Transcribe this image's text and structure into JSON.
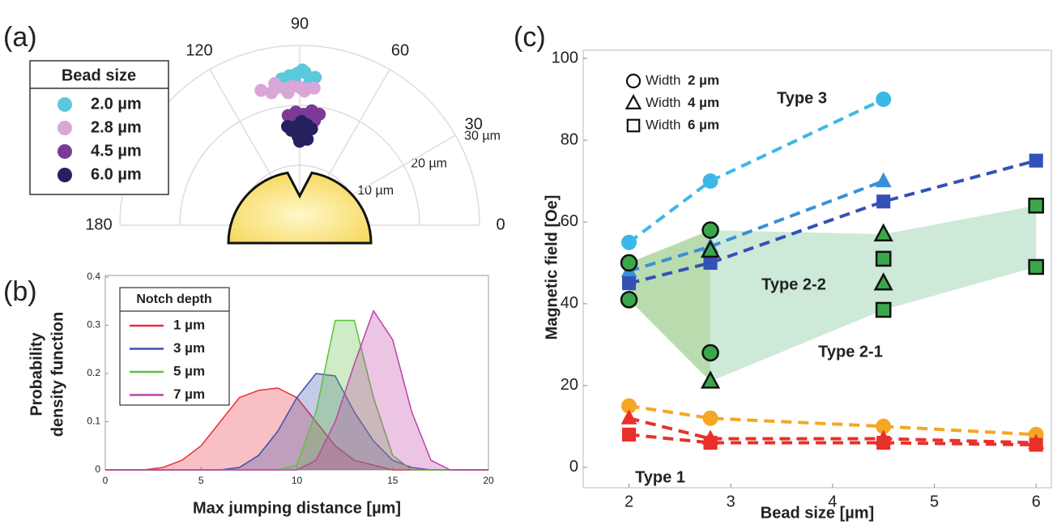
{
  "chart_data": [
    {
      "type": "polar-scatter",
      "label": "(a)",
      "legend_title": "Bead size",
      "thetalim": [
        0,
        180
      ],
      "rlim": [
        0,
        30
      ],
      "thetaticks": [
        0,
        30,
        60,
        90,
        120,
        180
      ],
      "rticks": [
        {
          "value": 10,
          "label": "10 µm"
        },
        {
          "value": 20,
          "label": "20 µm"
        },
        {
          "value": 30,
          "label": "30 µm"
        }
      ],
      "series": [
        {
          "name": "2.0 µm",
          "color": "#5cc8dc",
          "theta": [
            84,
            88,
            91,
            94,
            97,
            86,
            92,
            89
          ],
          "r": [
            24.8,
            25.5,
            25.3,
            25.0,
            24.6,
            23.9,
            24.2,
            25.9
          ]
        },
        {
          "name": "2.8 µm",
          "color": "#d9a6d8",
          "theta": [
            87,
            90,
            93,
            96,
            99,
            102,
            106,
            95,
            84,
            88,
            100
          ],
          "r": [
            22.8,
            23,
            23.2,
            22.9,
            23.3,
            22.6,
            23.4,
            22.2,
            23.0,
            22.4,
            24.0
          ]
        },
        {
          "name": "4.5 µm",
          "color": "#7b3a98",
          "theta": [
            80,
            84,
            88,
            92,
            96,
            86,
            90,
            82,
            94
          ],
          "r": [
            18.8,
            19.2,
            18.5,
            18.9,
            18.4,
            17.5,
            17.8,
            17.6,
            17.2
          ]
        },
        {
          "name": "6.0 µm",
          "color": "#25215e",
          "theta": [
            83,
            86,
            89,
            92,
            95,
            88,
            91,
            85,
            97,
            90
          ],
          "r": [
            16.2,
            16.8,
            17.3,
            16.5,
            15.9,
            15.2,
            14.8,
            14.4,
            16.6,
            14.0
          ]
        }
      ]
    },
    {
      "type": "area",
      "label": "(b)",
      "legend_title": "Notch depth",
      "xlabel": "Max jumping distance [µm]",
      "ylabel": [
        "Probability",
        "density function"
      ],
      "x": [
        0,
        1,
        2,
        3,
        4,
        5,
        6,
        7,
        8,
        9,
        10,
        11,
        12,
        13,
        14,
        15,
        16,
        17,
        18,
        19,
        20
      ],
      "xlim": [
        0,
        20
      ],
      "ylim": [
        0,
        0.4
      ],
      "xticks": [
        0,
        5,
        10,
        15,
        20
      ],
      "yticks": [
        0,
        0.1,
        0.2,
        0.3,
        0.4
      ],
      "series": [
        {
          "name": "1 µm",
          "color": "#e8303a",
          "values": [
            0,
            0,
            0,
            0.005,
            0.02,
            0.05,
            0.1,
            0.15,
            0.165,
            0.17,
            0.15,
            0.1,
            0.05,
            0.02,
            0.01,
            0,
            0,
            0,
            0,
            0,
            0
          ]
        },
        {
          "name": "3 µm",
          "color": "#3f4fb0",
          "values": [
            0,
            0,
            0,
            0,
            0,
            0,
            0,
            0.005,
            0.03,
            0.08,
            0.15,
            0.2,
            0.195,
            0.12,
            0.06,
            0.02,
            0.005,
            0,
            0,
            0,
            0
          ]
        },
        {
          "name": "5 µm",
          "color": "#5cc040",
          "values": [
            0,
            0,
            0,
            0,
            0,
            0,
            0,
            0,
            0,
            0,
            0.01,
            0.12,
            0.31,
            0.31,
            0.15,
            0.03,
            0,
            0,
            0,
            0,
            0
          ]
        },
        {
          "name": "7 µm",
          "color": "#c040a8",
          "values": [
            0,
            0,
            0,
            0,
            0,
            0,
            0,
            0,
            0,
            0,
            0,
            0.02,
            0.1,
            0.22,
            0.33,
            0.27,
            0.12,
            0.02,
            0,
            0,
            0
          ]
        }
      ]
    },
    {
      "type": "marker-line",
      "label": "(c)",
      "xlabel": "Bead size [µm]",
      "ylabel": "Magnetic field [Oe]",
      "xlim": [
        1.55,
        6.15
      ],
      "ylim": [
        -5,
        102
      ],
      "xticks": [
        2,
        3,
        4,
        5,
        6
      ],
      "yticks": [
        0,
        20,
        40,
        60,
        80,
        100
      ],
      "legend": [
        {
          "marker": "circle",
          "label": "Width",
          "value": "2 µm"
        },
        {
          "marker": "triangle",
          "label": "Width",
          "value": "4 µm"
        },
        {
          "marker": "square",
          "label": "Width",
          "value": "6 µm"
        }
      ],
      "band": {
        "x": [
          2,
          2.8,
          4.5,
          6
        ],
        "upper": [
          50,
          58,
          57,
          64
        ],
        "lower": [
          41,
          21,
          38.5,
          49
        ],
        "colors": [
          "#b9dcae",
          "#cde9d8",
          "#cde9d8"
        ]
      },
      "series": [
        {
          "marker": "circle",
          "color": "#3cb8e8",
          "dashed": true,
          "x": [
            2,
            2.8,
            4.5
          ],
          "values": [
            55,
            70,
            90
          ]
        },
        {
          "marker": "triangle",
          "color": "#3a8fd8",
          "dashed": true,
          "x": [
            2,
            2.8,
            4.5
          ],
          "values": [
            48,
            54,
            70
          ]
        },
        {
          "marker": "square",
          "color": "#3352b8",
          "dashed": true,
          "x": [
            2,
            2.8,
            4.5,
            6
          ],
          "values": [
            45,
            50,
            65,
            75
          ]
        },
        {
          "marker": "circle",
          "color": "#f5a623",
          "dashed": true,
          "x": [
            2,
            2.8,
            4.5,
            6
          ],
          "values": [
            15,
            12,
            10,
            8
          ]
        },
        {
          "marker": "triangle",
          "color": "#e8302a",
          "dashed": true,
          "x": [
            2,
            2.8,
            4.5,
            6
          ],
          "values": [
            12,
            7,
            7,
            6
          ]
        },
        {
          "marker": "square",
          "color": "#e8302a",
          "dashed": true,
          "x": [
            2,
            2.8,
            4.5,
            6
          ],
          "values": [
            8,
            6,
            6,
            5.5
          ]
        },
        {
          "marker": "circle",
          "color": "#3aa84a",
          "outline": "#111",
          "dashed": false,
          "x": [
            2,
            2,
            2.8,
            2.8
          ],
          "values": [
            50,
            41,
            58,
            28
          ]
        },
        {
          "marker": "triangle",
          "color": "#3aa84a",
          "outline": "#111",
          "dashed": false,
          "x": [
            2.8,
            2.8,
            4.5,
            4.5
          ],
          "values": [
            53,
            21,
            57,
            45
          ]
        },
        {
          "marker": "square",
          "color": "#3aa84a",
          "outline": "#111",
          "dashed": false,
          "x": [
            4.5,
            4.5,
            6,
            6
          ],
          "values": [
            51,
            38.5,
            64,
            49
          ]
        }
      ],
      "annotations": [
        {
          "text": "Type 3",
          "color": "#c040a8"
        },
        {
          "text": "Type 2-2",
          "color": "#1f7a30"
        },
        {
          "text": "Type 2-1",
          "color": "#3352b8"
        },
        {
          "text": "Type 1",
          "color": "#e8302a"
        }
      ]
    }
  ]
}
